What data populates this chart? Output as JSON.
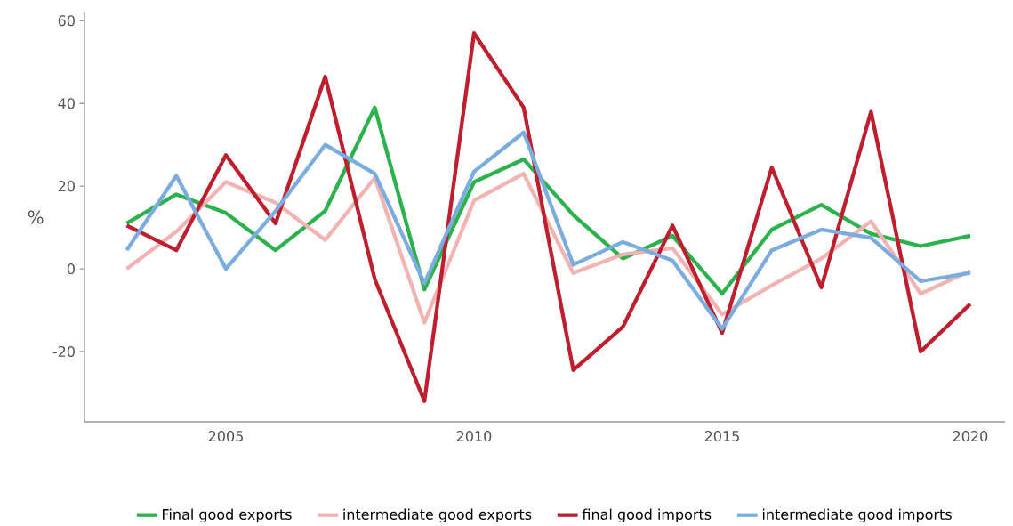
{
  "chart_data": {
    "type": "line",
    "ylabel": "%",
    "x": [
      2003,
      2004,
      2005,
      2006,
      2007,
      2008,
      2009,
      2010,
      2011,
      2012,
      2013,
      2014,
      2015,
      2016,
      2017,
      2018,
      2019,
      2020
    ],
    "xlim": [
      2002.15,
      2020.7
    ],
    "ylim": [
      -37,
      62
    ],
    "xticks": [
      2005,
      2010,
      2015,
      2020
    ],
    "yticks": [
      -20,
      0,
      20,
      40,
      60
    ],
    "legend": "bottom",
    "series": [
      {
        "name": "Final good exports",
        "color": "#2bb24c",
        "values": [
          11,
          18,
          13.5,
          4.5,
          14,
          39,
          -5,
          21,
          26.5,
          13,
          2.5,
          8,
          -6,
          9.5,
          15.5,
          8.5,
          5.5,
          8
        ]
      },
      {
        "name": "intermediate good exports",
        "color": "#f2b3b3",
        "values": [
          0,
          9,
          21,
          16,
          7,
          22,
          -13,
          16.5,
          23,
          -1,
          3.5,
          5,
          -11,
          -4,
          2.5,
          11.5,
          -6,
          -0.5
        ]
      },
      {
        "name": "final good imports",
        "color": "#be1e2d",
        "values": [
          10.5,
          4.5,
          27.5,
          11,
          46.5,
          -2.5,
          -32,
          57,
          39,
          -24.5,
          -14,
          10.5,
          -15.5,
          24.5,
          -4.5,
          38,
          -20,
          -8.5
        ]
      },
      {
        "name": "intermediate good imports",
        "color": "#7aace0",
        "values": [
          4.5,
          22.5,
          0,
          14,
          30,
          23,
          -3.5,
          23.5,
          33,
          1,
          6.5,
          2,
          -14.5,
          4.5,
          9.5,
          7.5,
          -3,
          -1
        ]
      }
    ]
  }
}
